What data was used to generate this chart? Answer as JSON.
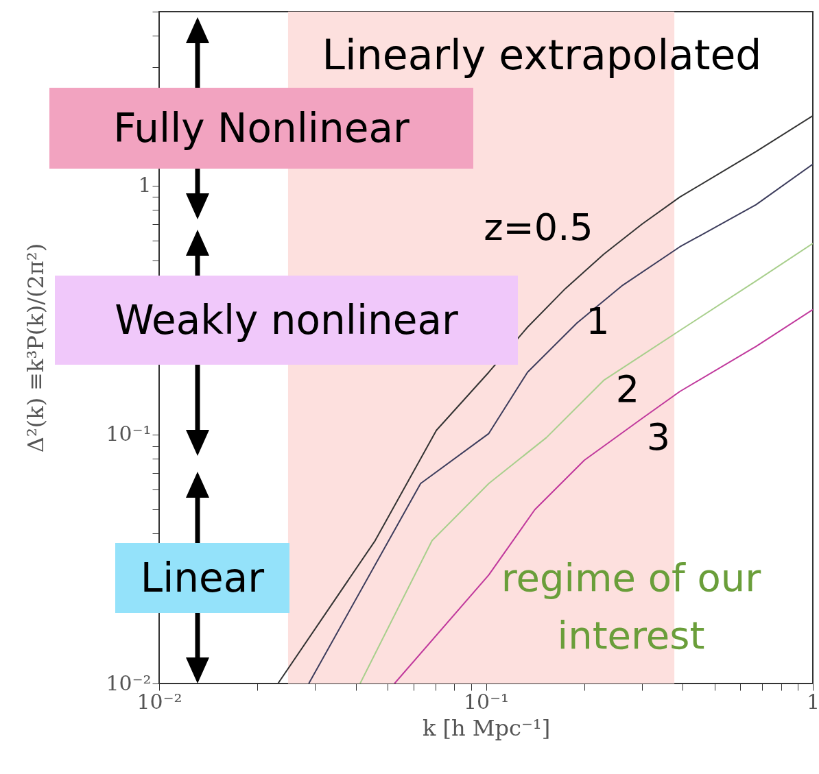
{
  "chart_data": {
    "type": "line",
    "xlabel": "k [h Mpc⁻¹]",
    "ylabel": "Δ²(k) ≡k³P(k)/(2π²)",
    "log": "xy",
    "grid": false,
    "xlim": [
      0.01,
      1
    ],
    "ylim": [
      0.01,
      5
    ],
    "xticks": [
      {
        "value": 0.01,
        "label": "10⁻²"
      },
      {
        "value": 0.02,
        "label": null
      },
      {
        "value": 0.03,
        "label": null
      },
      {
        "value": 0.04,
        "label": null
      },
      {
        "value": 0.05,
        "label": null
      },
      {
        "value": 0.06,
        "label": null
      },
      {
        "value": 0.07,
        "label": null
      },
      {
        "value": 0.08,
        "label": null
      },
      {
        "value": 0.09,
        "label": null
      },
      {
        "value": 0.1,
        "label": "10⁻¹"
      },
      {
        "value": 0.2,
        "label": null
      },
      {
        "value": 0.3,
        "label": null
      },
      {
        "value": 0.4,
        "label": null
      },
      {
        "value": 0.5,
        "label": null
      },
      {
        "value": 0.6,
        "label": null
      },
      {
        "value": 0.7,
        "label": null
      },
      {
        "value": 0.8,
        "label": null
      },
      {
        "value": 0.9,
        "label": null
      },
      1
    ],
    "yticks": [
      {
        "value": 0.01,
        "label": "10⁻²"
      },
      {
        "value": 0.02,
        "label": null
      },
      {
        "value": 0.03,
        "label": null
      },
      {
        "value": 0.04,
        "label": null
      },
      {
        "value": 0.05,
        "label": null
      },
      {
        "value": 0.06,
        "label": null
      },
      {
        "value": 0.07,
        "label": null
      },
      {
        "value": 0.08,
        "label": null
      },
      {
        "value": 0.09,
        "label": null
      },
      {
        "value": 0.1,
        "label": "10⁻¹"
      },
      {
        "value": 0.2,
        "label": null
      },
      {
        "value": 0.3,
        "label": null
      },
      {
        "value": 0.4,
        "label": null
      },
      {
        "value": 0.5,
        "label": null
      },
      {
        "value": 0.6,
        "label": null
      },
      {
        "value": 0.7,
        "label": null
      },
      {
        "value": 0.8,
        "label": null
      },
      {
        "value": 0.9,
        "label": null
      },
      1,
      {
        "value": 2,
        "label": null
      },
      {
        "value": 3,
        "label": null
      },
      {
        "value": 4,
        "label": null
      },
      {
        "value": 5,
        "label": null
      }
    ],
    "series": [
      {
        "name": "z=0.5",
        "color": "#333333",
        "x": [
          0.0231,
          0.0458,
          0.0705,
          0.102,
          0.134,
          0.175,
          0.229,
          0.3,
          0.392,
          0.67,
          1
        ],
        "values": [
          0.01,
          0.0375,
          0.104,
          0.178,
          0.27,
          0.386,
          0.53,
          0.7,
          0.9,
          1.37,
          1.91
        ]
      },
      {
        "name": "1",
        "color": "#3c3c5c",
        "x": [
          0.0287,
          0.0631,
          0.102,
          0.134,
          0.19,
          0.262,
          0.392,
          0.67,
          1
        ],
        "values": [
          0.01,
          0.0636,
          0.101,
          0.178,
          0.281,
          0.398,
          0.568,
          0.838,
          1.22
        ]
      },
      {
        "name": "2",
        "color": "#a8cf8c",
        "x": [
          0.0412,
          0.0684,
          0.102,
          0.153,
          0.229,
          0.392,
          0.67,
          1
        ],
        "values": [
          0.01,
          0.0375,
          0.0636,
          0.0972,
          0.165,
          0.262,
          0.414,
          0.586
        ]
      },
      {
        "name": "3",
        "color": "#c0389c",
        "x": [
          0.0525,
          0.102,
          0.141,
          0.2,
          0.3,
          0.392,
          0.67,
          1
        ],
        "values": [
          0.01,
          0.0273,
          0.0499,
          0.0789,
          0.116,
          0.149,
          0.226,
          0.318
        ]
      }
    ],
    "bands": [
      {
        "axis": "x",
        "from": 0.0248,
        "to": 0.377,
        "label": "regime of our interest",
        "color": "#fde0de"
      }
    ],
    "annotations": [
      "Linearly extrapolated",
      "Fully Nonlinear",
      "Weakly nonlinear",
      "Linear"
    ]
  }
}
